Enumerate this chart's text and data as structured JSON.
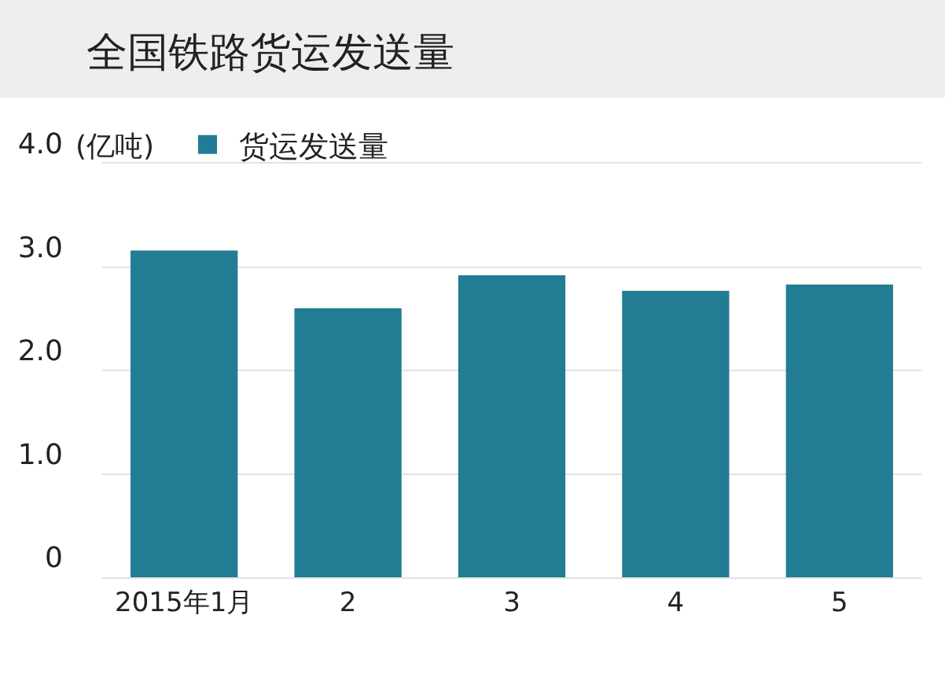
{
  "chart_data": {
    "type": "bar",
    "title": "全国铁路货运发送量",
    "ylabel": "(亿吨)",
    "categories": [
      "2015年1月",
      "2",
      "3",
      "4",
      "5"
    ],
    "series": [
      {
        "name": "货运发送量",
        "color": "#227c94",
        "values": [
          3.16,
          2.6,
          2.92,
          2.77,
          2.83
        ]
      }
    ],
    "ylim": [
      0,
      4
    ],
    "yticks": [
      0,
      {
        "value": 1,
        "label": "1.0"
      },
      {
        "value": 2,
        "label": "2.0"
      },
      {
        "value": 3,
        "label": "3.0"
      },
      {
        "value": 4,
        "label": "4.0"
      }
    ],
    "grid": "y",
    "legend": "top left"
  }
}
